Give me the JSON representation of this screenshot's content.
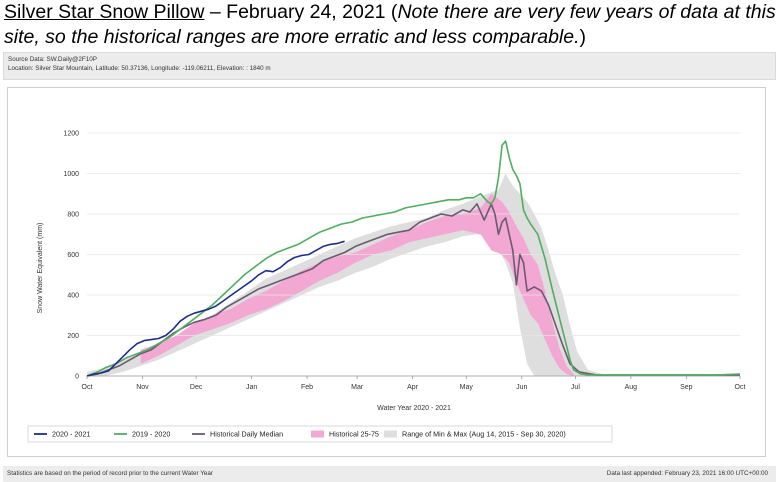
{
  "heading": {
    "site": "Silver Star Snow Pillow",
    "date": " – February 24, 2021 (",
    "note": "Note there are very few years of data at this site, so the historical ranges are more erratic and less comparable.",
    "close": ")"
  },
  "source": {
    "line1": "Source Data: SW.Daily@2F10P",
    "line2": "Location: Silver Star Mountain, Latitude: 50.37136, Longitude: -119.06211, Elevation: : 1840 m"
  },
  "footer": {
    "left": "Statistics are based on the period of record prior to the current Water Year",
    "right": "Data last appended: February 23, 2021 16:00 UTC+00:00"
  },
  "colors": {
    "wy2021": "#1f2d8a",
    "wy2020": "#4fae5f",
    "median": "#6b5a70",
    "p2575": "#f2a8d2",
    "minmax": "#dedede"
  },
  "chart_data": {
    "type": "line",
    "xlabel": "Water Year 2020 - 2021",
    "ylabel": "Snow Water Equivalent (mm)",
    "ylim": [
      0,
      1200
    ],
    "yticks": [
      0,
      200,
      400,
      600,
      800,
      1000,
      1200
    ],
    "xlim": [
      0,
      365
    ],
    "months": [
      {
        "label": "Oct",
        "day": 0
      },
      {
        "label": "Nov",
        "day": 31
      },
      {
        "label": "Dec",
        "day": 61
      },
      {
        "label": "Jan",
        "day": 92
      },
      {
        "label": "Feb",
        "day": 123
      },
      {
        "label": "Mar",
        "day": 151
      },
      {
        "label": "Apr",
        "day": 182
      },
      {
        "label": "May",
        "day": 212
      },
      {
        "label": "Jun",
        "day": 243
      },
      {
        "label": "Jul",
        "day": 273
      },
      {
        "label": "Aug",
        "day": 304
      },
      {
        "label": "Sep",
        "day": 335
      },
      {
        "label": "Oct",
        "day": 365
      }
    ],
    "grid": true,
    "legend_position": "bottom",
    "series": [
      {
        "name": "2020 - 2021",
        "kind": "line",
        "color": "#1f2d8a",
        "x": [
          0,
          4,
          8,
          12,
          16,
          20,
          24,
          28,
          32,
          36,
          40,
          44,
          48,
          52,
          56,
          60,
          64,
          68,
          72,
          76,
          80,
          84,
          88,
          92,
          96,
          100,
          104,
          108,
          112,
          116,
          120,
          124,
          128,
          132,
          136,
          140,
          144
        ],
        "y": [
          0,
          10,
          15,
          25,
          60,
          95,
          130,
          160,
          175,
          180,
          185,
          200,
          230,
          270,
          295,
          310,
          320,
          330,
          345,
          370,
          395,
          420,
          445,
          470,
          500,
          520,
          515,
          535,
          565,
          585,
          595,
          600,
          620,
          640,
          650,
          655,
          665
        ]
      },
      {
        "name": "2019 - 2020",
        "kind": "line",
        "color": "#4fae5f",
        "x": [
          0,
          6,
          10,
          16,
          22,
          28,
          34,
          40,
          46,
          52,
          58,
          64,
          70,
          76,
          82,
          88,
          94,
          100,
          106,
          112,
          118,
          124,
          130,
          136,
          142,
          148,
          154,
          160,
          166,
          172,
          178,
          184,
          190,
          196,
          202,
          208,
          212,
          216,
          220,
          224,
          226,
          228,
          230,
          232,
          234,
          236,
          238,
          240,
          242,
          244,
          246,
          248,
          252,
          256,
          260,
          264,
          268,
          270,
          272,
          276,
          280,
          290,
          310,
          330,
          350,
          365
        ],
        "y": [
          0,
          20,
          40,
          60,
          90,
          110,
          130,
          160,
          190,
          230,
          270,
          310,
          350,
          400,
          450,
          500,
          540,
          580,
          610,
          630,
          650,
          680,
          710,
          730,
          750,
          760,
          780,
          790,
          800,
          810,
          830,
          840,
          850,
          860,
          870,
          870,
          880,
          880,
          900,
          860,
          850,
          880,
          980,
          1140,
          1160,
          1080,
          1020,
          990,
          950,
          820,
          780,
          750,
          700,
          580,
          430,
          290,
          150,
          80,
          30,
          10,
          5,
          5,
          5,
          5,
          5,
          10
        ]
      },
      {
        "name": "Historical Daily Median",
        "kind": "line",
        "color": "#6b5a70",
        "x": [
          0,
          6,
          12,
          18,
          24,
          30,
          36,
          42,
          48,
          54,
          60,
          66,
          72,
          78,
          84,
          90,
          96,
          102,
          108,
          114,
          120,
          126,
          132,
          138,
          144,
          150,
          156,
          162,
          168,
          174,
          180,
          186,
          192,
          198,
          204,
          210,
          214,
          218,
          222,
          226,
          228,
          230,
          232,
          234,
          236,
          238,
          240,
          242,
          244,
          246,
          250,
          254,
          258,
          262,
          266,
          270,
          275,
          285,
          300,
          320,
          340,
          365
        ],
        "y": [
          0,
          10,
          30,
          50,
          80,
          110,
          130,
          170,
          210,
          240,
          265,
          280,
          300,
          340,
          370,
          400,
          430,
          450,
          470,
          490,
          510,
          530,
          570,
          590,
          610,
          640,
          660,
          680,
          700,
          710,
          720,
          760,
          780,
          800,
          790,
          820,
          810,
          850,
          770,
          850,
          800,
          700,
          760,
          780,
          700,
          620,
          450,
          600,
          560,
          420,
          440,
          420,
          350,
          250,
          150,
          60,
          20,
          5,
          5,
          5,
          5,
          5
        ]
      },
      {
        "name": "Historical 25-75",
        "kind": "band",
        "color": "#f2a8d2",
        "x": [
          30,
          40,
          50,
          60,
          70,
          80,
          90,
          100,
          110,
          120,
          130,
          140,
          150,
          160,
          170,
          180,
          190,
          200,
          210,
          220,
          226,
          232,
          236,
          240,
          244,
          248,
          252,
          256,
          260,
          264,
          268,
          272
        ],
        "low": [
          60,
          100,
          150,
          200,
          230,
          260,
          300,
          330,
          370,
          420,
          470,
          510,
          560,
          600,
          620,
          660,
          680,
          700,
          720,
          700,
          620,
          600,
          560,
          460,
          380,
          300,
          260,
          180,
          100,
          40,
          10,
          0
        ],
        "high": [
          130,
          160,
          200,
          260,
          300,
          330,
          380,
          420,
          470,
          520,
          560,
          590,
          610,
          650,
          690,
          720,
          760,
          790,
          800,
          830,
          900,
          860,
          810,
          740,
          680,
          600,
          550,
          420,
          270,
          140,
          50,
          10
        ]
      },
      {
        "name": "Range of Min & Max (Aug 14, 2015 - Sep 30, 2020)",
        "kind": "band",
        "color": "#dedede",
        "x": [
          0,
          10,
          20,
          30,
          40,
          50,
          60,
          70,
          80,
          90,
          100,
          110,
          120,
          130,
          140,
          150,
          160,
          170,
          180,
          190,
          200,
          210,
          218,
          224,
          230,
          234,
          238,
          242,
          246,
          250,
          254,
          258,
          262,
          266,
          270,
          274,
          280,
          290
        ],
        "low": [
          0,
          0,
          20,
          50,
          80,
          120,
          160,
          200,
          240,
          280,
          320,
          360,
          400,
          440,
          470,
          510,
          540,
          580,
          610,
          640,
          660,
          690,
          700,
          690,
          620,
          560,
          460,
          240,
          60,
          0,
          0,
          0,
          0,
          0,
          0,
          0,
          0,
          0
        ],
        "high": [
          20,
          40,
          80,
          110,
          150,
          190,
          240,
          300,
          360,
          420,
          480,
          520,
          560,
          600,
          640,
          680,
          710,
          740,
          760,
          780,
          820,
          850,
          880,
          900,
          920,
          1000,
          940,
          900,
          860,
          800,
          730,
          620,
          500,
          400,
          250,
          120,
          30,
          5
        ]
      }
    ]
  }
}
